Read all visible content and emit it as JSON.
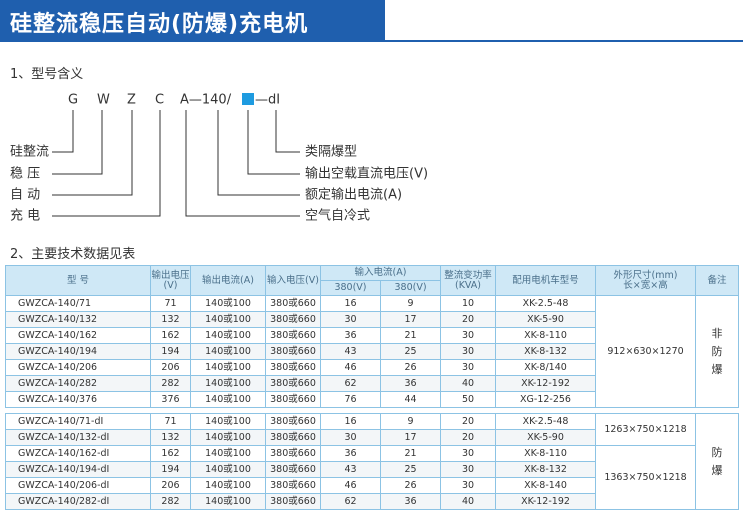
{
  "header": {
    "title": "硅整流稳压自动(防爆)充电机"
  },
  "model_meaning": {
    "heading": "1、型号含义",
    "code": [
      "G",
      "W",
      "Z",
      "C",
      "A—140/",
      "—dI"
    ],
    "left_labels": [
      "硅整流",
      "稳 压",
      "自 动",
      "充 电"
    ],
    "right_labels": [
      "类隔爆型",
      "输出空载直流电压(V)",
      "额定输出电流(A)",
      "空气自冷式"
    ]
  },
  "table_section": {
    "heading": "2、主要技术数据见表"
  },
  "table": {
    "header": {
      "model": "型 号",
      "output_voltage": "输出电压(V)",
      "output_current": "输出电流(A)",
      "input_voltage": "输入电压(V)",
      "input_current": "输入电流(A)",
      "input_current_sub": [
        "380(V)",
        "380(V)"
      ],
      "power": "整流变功率(KVA)",
      "vehicle": "配用电机车型号",
      "size": [
        "外形尺寸(mm)",
        "长×宽×高"
      ],
      "remark": "备注"
    },
    "groups": [
      {
        "rows": [
          [
            "GWZCA-140/71",
            "71",
            "140或100",
            "380或660",
            "16",
            "9",
            "10",
            "XK-2.5-48"
          ],
          [
            "GWZCA-140/132",
            "132",
            "140或100",
            "380或660",
            "30",
            "17",
            "20",
            "XK-5-90"
          ],
          [
            "GWZCA-140/162",
            "162",
            "140或100",
            "380或660",
            "36",
            "21",
            "30",
            "XK-8-110"
          ],
          [
            "GWZCA-140/194",
            "194",
            "140或100",
            "380或660",
            "43",
            "25",
            "30",
            "XK-8-132"
          ],
          [
            "GWZCA-140/206",
            "206",
            "140或100",
            "380或660",
            "46",
            "26",
            "30",
            "XK-8/140"
          ],
          [
            "GWZCA-140/282",
            "282",
            "140或100",
            "380或660",
            "62",
            "36",
            "40",
            "XK-12-192"
          ],
          [
            "GWZCA-140/376",
            "376",
            "140或100",
            "380或660",
            "76",
            "44",
            "50",
            "XG-12-256"
          ]
        ],
        "dimensions": [
          "912×630×1270"
        ],
        "remark": "非防爆"
      },
      {
        "rows": [
          [
            "GWZCA-140/71-dI",
            "71",
            "140或100",
            "380或660",
            "16",
            "9",
            "20",
            "XK-2.5-48"
          ],
          [
            "GWZCA-140/132-dI",
            "132",
            "140或100",
            "380或660",
            "30",
            "17",
            "20",
            "XK-5-90"
          ],
          [
            "GWZCA-140/162-dI",
            "162",
            "140或100",
            "380或660",
            "36",
            "21",
            "30",
            "XK-8-110"
          ],
          [
            "GWZCA-140/194-dI",
            "194",
            "140或100",
            "380或660",
            "43",
            "25",
            "30",
            "XK-8-132"
          ],
          [
            "GWZCA-140/206-dI",
            "206",
            "140或100",
            "380或660",
            "46",
            "26",
            "30",
            "XK-8-140"
          ],
          [
            "GWZCA-140/282-dI",
            "282",
            "140或100",
            "380或660",
            "62",
            "36",
            "40",
            "XK-12-192"
          ]
        ],
        "dimensions": [
          "1263×750×1218",
          "1363×750×1218"
        ],
        "remark": "防爆"
      }
    ]
  }
}
